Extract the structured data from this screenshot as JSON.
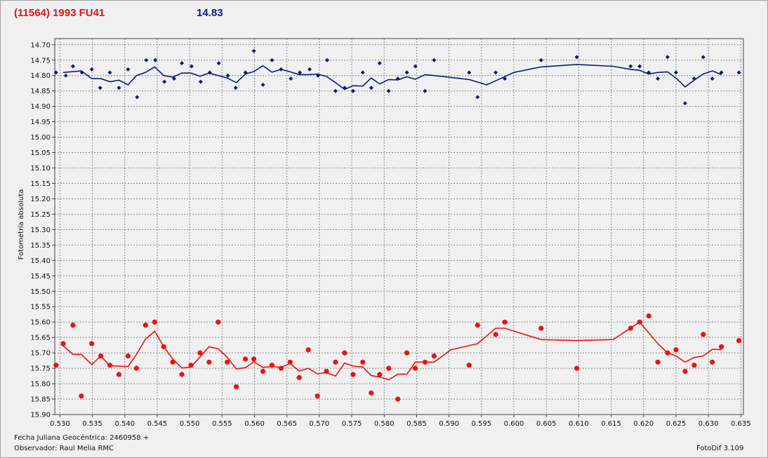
{
  "header": {
    "object_name": "(11564) 1993 FU41",
    "magnitude": "14.83"
  },
  "footer": {
    "julian_date": "Fecha Juliana Geocéntrica: 2460958 +",
    "observer": "Observador: Raul Melia RMC",
    "software": "FotoDif 3.109"
  },
  "colors": {
    "series_blue": "#0d1a7a",
    "series_red": "#ee1111",
    "grid": "#8a8a8a"
  },
  "chart_data": {
    "type": "scatter",
    "title": "",
    "xlabel": "",
    "ylabel": "Fotometría absoluta",
    "xlim": [
      0.5292,
      0.6354
    ],
    "ylim": [
      15.9,
      14.68
    ],
    "y_inverted": true,
    "grid": true,
    "x_ticks": [
      "0.530",
      "0.535",
      "0.540",
      "0.545",
      "0.550",
      "0.555",
      "0.560",
      "0.565",
      "0.570",
      "0.575",
      "0.580",
      "0.585",
      "0.590",
      "0.595",
      "0.600",
      "0.605",
      "0.610",
      "0.615",
      "0.620",
      "0.625",
      "0.630",
      "0.635"
    ],
    "y_ticks": [
      "14.70",
      "14.75",
      "14.80",
      "14.85",
      "14.90",
      "14.95",
      "15.00",
      "15.05",
      "15.10",
      "15.15",
      "15.20",
      "15.25",
      "15.30",
      "15.35",
      "15.40",
      "15.45",
      "15.50",
      "15.55",
      "15.60",
      "15.65",
      "15.70",
      "15.75",
      "15.80",
      "15.85",
      "15.90"
    ],
    "series": [
      {
        "marker": "diamond",
        "points": [
          [
            0.5294,
            14.79
          ],
          [
            0.5309,
            14.8
          ],
          [
            0.532,
            14.77
          ],
          [
            0.5334,
            14.79
          ],
          [
            0.5349,
            14.78
          ],
          [
            0.5362,
            14.84
          ],
          [
            0.5377,
            14.79
          ],
          [
            0.5391,
            14.84
          ],
          [
            0.5405,
            14.78
          ],
          [
            0.5419,
            14.87
          ],
          [
            0.5433,
            14.75
          ],
          [
            0.5447,
            14.75
          ],
          [
            0.5461,
            14.82
          ],
          [
            0.5476,
            14.81
          ],
          [
            0.5488,
            14.76
          ],
          [
            0.5503,
            14.77
          ],
          [
            0.5517,
            14.82
          ],
          [
            0.5531,
            14.79
          ],
          [
            0.5545,
            14.76
          ],
          [
            0.5559,
            14.8
          ],
          [
            0.5571,
            14.84
          ],
          [
            0.5586,
            14.79
          ],
          [
            0.5599,
            14.72
          ],
          [
            0.5613,
            14.83
          ],
          [
            0.5627,
            14.75
          ],
          [
            0.5641,
            14.78
          ],
          [
            0.5656,
            14.81
          ],
          [
            0.567,
            14.79
          ],
          [
            0.5685,
            14.78
          ],
          [
            0.5698,
            14.8
          ],
          [
            0.5712,
            14.75
          ],
          [
            0.5725,
            14.85
          ],
          [
            0.5739,
            14.84
          ],
          [
            0.5752,
            14.85
          ],
          [
            0.5767,
            14.79
          ],
          [
            0.578,
            14.84
          ],
          [
            0.5793,
            14.76
          ],
          [
            0.5807,
            14.85
          ],
          [
            0.5821,
            14.81
          ],
          [
            0.5835,
            14.79
          ],
          [
            0.5848,
            14.77
          ],
          [
            0.5863,
            14.85
          ],
          [
            0.5877,
            14.75
          ],
          [
            0.5931,
            14.79
          ],
          [
            0.5944,
            14.87
          ],
          [
            0.5972,
            14.79
          ],
          [
            0.5986,
            14.81
          ],
          [
            0.6042,
            14.75
          ],
          [
            0.6097,
            14.74
          ],
          [
            0.618,
            14.77
          ],
          [
            0.6194,
            14.77
          ],
          [
            0.6208,
            14.79
          ],
          [
            0.6222,
            14.81
          ],
          [
            0.6237,
            14.74
          ],
          [
            0.625,
            14.79
          ],
          [
            0.6264,
            14.89
          ],
          [
            0.6278,
            14.81
          ],
          [
            0.6292,
            14.74
          ],
          [
            0.6306,
            14.81
          ],
          [
            0.632,
            14.79
          ],
          [
            0.6347,
            14.79
          ]
        ],
        "curve": [
          [
            0.5305,
            14.79
          ],
          [
            0.5333,
            14.785
          ],
          [
            0.5349,
            14.81
          ],
          [
            0.5363,
            14.81
          ],
          [
            0.5377,
            14.82
          ],
          [
            0.5391,
            14.815
          ],
          [
            0.5405,
            14.83
          ],
          [
            0.5418,
            14.8
          ],
          [
            0.5432,
            14.79
          ],
          [
            0.5446,
            14.772
          ],
          [
            0.546,
            14.8
          ],
          [
            0.5474,
            14.805
          ],
          [
            0.5488,
            14.792
          ],
          [
            0.5502,
            14.792
          ],
          [
            0.5516,
            14.802
          ],
          [
            0.553,
            14.792
          ],
          [
            0.5544,
            14.8
          ],
          [
            0.5558,
            14.808
          ],
          [
            0.5572,
            14.823
          ],
          [
            0.5586,
            14.795
          ],
          [
            0.5599,
            14.787
          ],
          [
            0.5613,
            14.768
          ],
          [
            0.5627,
            14.789
          ],
          [
            0.5641,
            14.78
          ],
          [
            0.5655,
            14.788
          ],
          [
            0.5669,
            14.797
          ],
          [
            0.5683,
            14.797
          ],
          [
            0.5697,
            14.795
          ],
          [
            0.5711,
            14.803
          ],
          [
            0.5725,
            14.823
          ],
          [
            0.5739,
            14.845
          ],
          [
            0.5752,
            14.833
          ],
          [
            0.5767,
            14.834
          ],
          [
            0.578,
            14.808
          ],
          [
            0.5793,
            14.827
          ],
          [
            0.5807,
            14.813
          ],
          [
            0.5821,
            14.814
          ],
          [
            0.5835,
            14.804
          ],
          [
            0.5848,
            14.812
          ],
          [
            0.5863,
            14.797
          ],
          [
            0.5877,
            14.8
          ],
          [
            0.5931,
            14.813
          ],
          [
            0.5958,
            14.83
          ],
          [
            0.5972,
            14.817
          ],
          [
            0.6,
            14.79
          ],
          [
            0.6042,
            14.772
          ],
          [
            0.6097,
            14.764
          ],
          [
            0.6153,
            14.77
          ],
          [
            0.618,
            14.78
          ],
          [
            0.6194,
            14.783
          ],
          [
            0.6208,
            14.795
          ],
          [
            0.6222,
            14.79
          ],
          [
            0.6237,
            14.788
          ],
          [
            0.625,
            14.808
          ],
          [
            0.6264,
            14.837
          ],
          [
            0.6278,
            14.815
          ],
          [
            0.6292,
            14.795
          ],
          [
            0.6306,
            14.785
          ],
          [
            0.632,
            14.797
          ]
        ]
      },
      {
        "marker": "circle",
        "points": [
          [
            0.5294,
            15.74
          ],
          [
            0.5305,
            15.67
          ],
          [
            0.532,
            15.61
          ],
          [
            0.5333,
            15.84
          ],
          [
            0.5349,
            15.67
          ],
          [
            0.5363,
            15.71
          ],
          [
            0.5377,
            15.74
          ],
          [
            0.5391,
            15.77
          ],
          [
            0.5405,
            15.71
          ],
          [
            0.5418,
            15.75
          ],
          [
            0.5432,
            15.61
          ],
          [
            0.5446,
            15.6
          ],
          [
            0.546,
            15.68
          ],
          [
            0.5474,
            15.73
          ],
          [
            0.5488,
            15.77
          ],
          [
            0.5502,
            15.74
          ],
          [
            0.5516,
            15.7
          ],
          [
            0.553,
            15.73
          ],
          [
            0.5544,
            15.6
          ],
          [
            0.5558,
            15.73
          ],
          [
            0.5572,
            15.81
          ],
          [
            0.5586,
            15.72
          ],
          [
            0.5599,
            15.72
          ],
          [
            0.5613,
            15.76
          ],
          [
            0.5627,
            15.74
          ],
          [
            0.5641,
            15.75
          ],
          [
            0.5655,
            15.73
          ],
          [
            0.5669,
            15.78
          ],
          [
            0.5683,
            15.69
          ],
          [
            0.5697,
            15.84
          ],
          [
            0.5711,
            15.76
          ],
          [
            0.5725,
            15.73
          ],
          [
            0.5739,
            15.7
          ],
          [
            0.5752,
            15.77
          ],
          [
            0.5767,
            15.73
          ],
          [
            0.578,
            15.83
          ],
          [
            0.5793,
            15.77
          ],
          [
            0.5807,
            15.75
          ],
          [
            0.5821,
            15.85
          ],
          [
            0.5835,
            15.7
          ],
          [
            0.5848,
            15.75
          ],
          [
            0.5863,
            15.73
          ],
          [
            0.5877,
            15.71
          ],
          [
            0.5931,
            15.74
          ],
          [
            0.5944,
            15.61
          ],
          [
            0.5972,
            15.64
          ],
          [
            0.5986,
            15.6
          ],
          [
            0.6042,
            15.62
          ],
          [
            0.6097,
            15.75
          ],
          [
            0.618,
            15.62
          ],
          [
            0.6194,
            15.6
          ],
          [
            0.6208,
            15.58
          ],
          [
            0.6222,
            15.73
          ],
          [
            0.6237,
            15.7
          ],
          [
            0.625,
            15.69
          ],
          [
            0.6264,
            15.76
          ],
          [
            0.6278,
            15.74
          ],
          [
            0.6292,
            15.64
          ],
          [
            0.6306,
            15.73
          ],
          [
            0.632,
            15.68
          ],
          [
            0.6347,
            15.66
          ]
        ],
        "curve": [
          [
            0.5305,
            15.677
          ],
          [
            0.532,
            15.705
          ],
          [
            0.5333,
            15.705
          ],
          [
            0.5349,
            15.738
          ],
          [
            0.5363,
            15.71
          ],
          [
            0.5377,
            15.742
          ],
          [
            0.5405,
            15.744
          ],
          [
            0.5418,
            15.705
          ],
          [
            0.5432,
            15.655
          ],
          [
            0.5446,
            15.63
          ],
          [
            0.546,
            15.679
          ],
          [
            0.5474,
            15.72
          ],
          [
            0.5488,
            15.749
          ],
          [
            0.5502,
            15.746
          ],
          [
            0.5516,
            15.713
          ],
          [
            0.553,
            15.68
          ],
          [
            0.5544,
            15.687
          ],
          [
            0.5558,
            15.714
          ],
          [
            0.5572,
            15.752
          ],
          [
            0.5586,
            15.748
          ],
          [
            0.5599,
            15.729
          ],
          [
            0.5613,
            15.747
          ],
          [
            0.5627,
            15.744
          ],
          [
            0.5641,
            15.747
          ],
          [
            0.5655,
            15.734
          ],
          [
            0.5669,
            15.759
          ],
          [
            0.5683,
            15.75
          ],
          [
            0.5697,
            15.768
          ],
          [
            0.5711,
            15.764
          ],
          [
            0.5725,
            15.775
          ],
          [
            0.5739,
            15.733
          ],
          [
            0.5752,
            15.743
          ],
          [
            0.5767,
            15.746
          ],
          [
            0.578,
            15.774
          ],
          [
            0.5793,
            15.778
          ],
          [
            0.5807,
            15.787
          ],
          [
            0.5821,
            15.769
          ],
          [
            0.5835,
            15.769
          ],
          [
            0.5848,
            15.73
          ],
          [
            0.5863,
            15.73
          ],
          [
            0.5877,
            15.73
          ],
          [
            0.5903,
            15.69
          ],
          [
            0.5944,
            15.67
          ],
          [
            0.5972,
            15.62
          ],
          [
            0.5986,
            15.62
          ],
          [
            0.6042,
            15.657
          ],
          [
            0.6097,
            15.66
          ],
          [
            0.6153,
            15.657
          ],
          [
            0.6194,
            15.6
          ],
          [
            0.6222,
            15.67
          ],
          [
            0.6237,
            15.7
          ],
          [
            0.625,
            15.71
          ],
          [
            0.6264,
            15.73
          ],
          [
            0.6278,
            15.715
          ],
          [
            0.6292,
            15.71
          ],
          [
            0.6306,
            15.688
          ],
          [
            0.632,
            15.69
          ]
        ]
      }
    ]
  }
}
